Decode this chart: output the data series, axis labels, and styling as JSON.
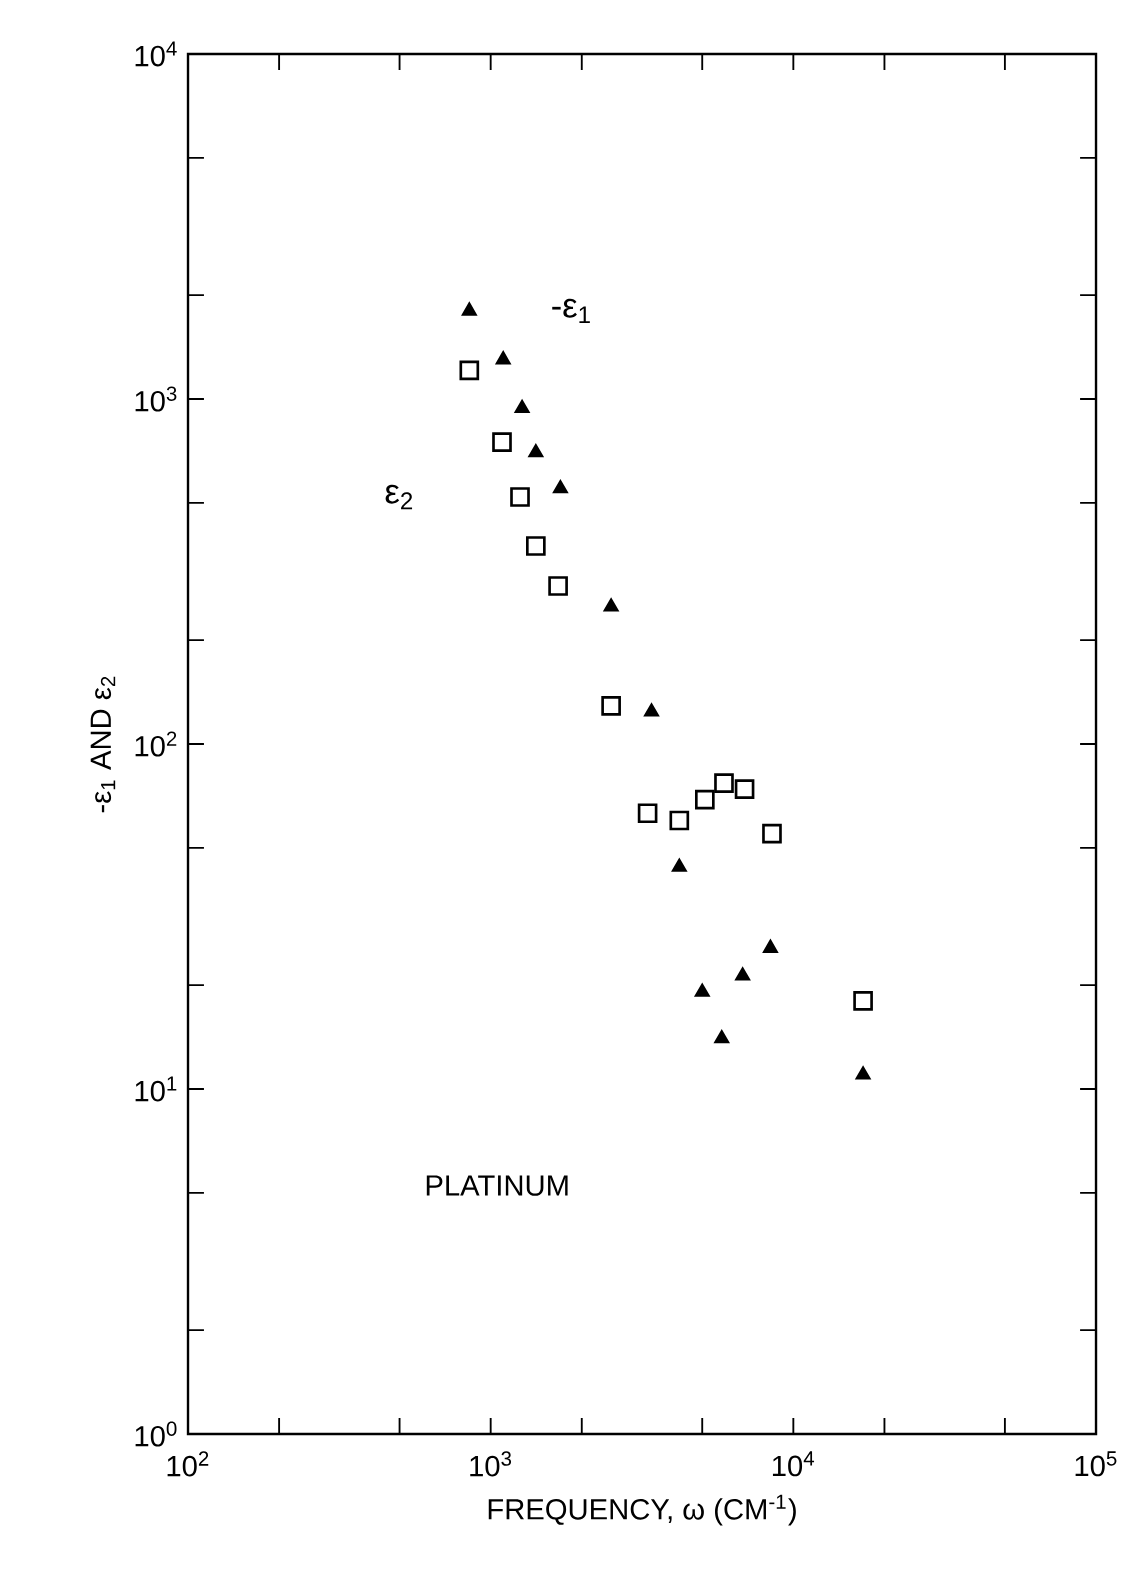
{
  "chart_data": {
    "type": "scatter",
    "xlabel": "FREQUENCY, ω  (CM$^{-1}$)",
    "ylabel": "-ε$_{1}$ AND ε$_{2}$",
    "annotations": [
      "PLATINUM"
    ],
    "log": "xy",
    "xlim": [
      100,
      100000
    ],
    "ylim": [
      1,
      10000
    ],
    "xticks": [
      {
        "value": 100,
        "label": "10$^{2}$"
      },
      {
        "value": 200,
        "label": null
      },
      {
        "value": 500,
        "label": null
      },
      {
        "value": 1000,
        "label": "10$^{3}$"
      },
      {
        "value": 2000,
        "label": null
      },
      {
        "value": 5000,
        "label": null
      },
      {
        "value": 10000,
        "label": "10$^{4}$"
      },
      {
        "value": 20000,
        "label": null
      },
      {
        "value": 50000,
        "label": null
      },
      {
        "value": 100000,
        "label": "10$^{5}$"
      }
    ],
    "yticks": [
      {
        "value": 1,
        "label": "10$^{0}$"
      },
      {
        "value": 2,
        "label": null
      },
      {
        "value": 5,
        "label": null
      },
      {
        "value": 10,
        "label": "10$^{1}$"
      },
      {
        "value": 20,
        "label": null
      },
      {
        "value": 50,
        "label": null
      },
      {
        "value": 100,
        "label": "10$^{2}$"
      },
      {
        "value": 200,
        "label": null
      },
      {
        "value": 500,
        "label": null
      },
      {
        "value": 1000,
        "label": "10$^{3}$"
      },
      {
        "value": 2000,
        "label": null
      },
      {
        "value": 5000,
        "label": null
      },
      {
        "value": 10000,
        "label": "10$^{4}$"
      }
    ],
    "grid": false,
    "legend": false,
    "series": [
      {
        "name": "-ε$_{1}$",
        "color": "#000000",
        "marker": "triangle",
        "x": [
          850,
          1100,
          1270,
          1410,
          1700,
          2500,
          3400,
          4200,
          8400,
          6800,
          5000,
          5800,
          17000
        ],
        "values": [
          1800,
          1300,
          940,
          700,
          550,
          250,
          124,
          44,
          25.6,
          21.3,
          19.1,
          14,
          11
        ]
      },
      {
        "name": "ε$_{2}$",
        "color": "#000000",
        "marker": "square",
        "x": [
          850,
          1090,
          1250,
          1410,
          1670,
          2500,
          3300,
          4200,
          5100,
          5900,
          6900,
          8500,
          17000
        ],
        "values": [
          1210,
          750,
          520,
          375,
          287,
          129,
          63,
          60,
          69,
          77,
          74,
          55,
          18
        ]
      }
    ]
  }
}
